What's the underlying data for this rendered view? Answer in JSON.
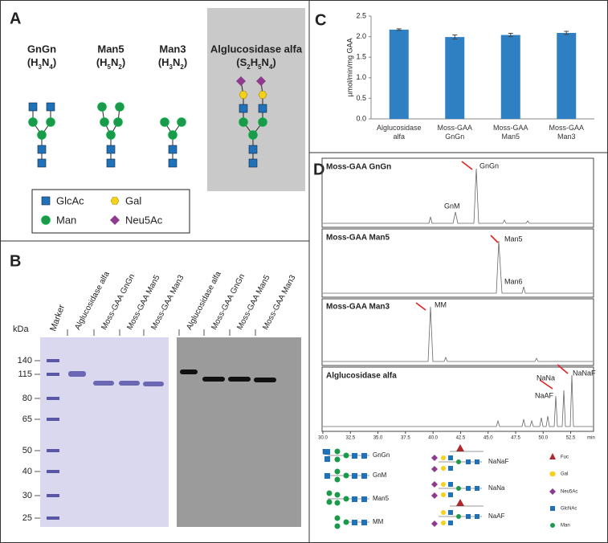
{
  "panel_a": {
    "letter": "A",
    "glycans": [
      {
        "name": "GnGn",
        "formula": [
          "(H",
          "3",
          "N",
          "4",
          ")"
        ]
      },
      {
        "name": "Man5",
        "formula": [
          "(H",
          "5",
          "N",
          "2",
          ")"
        ]
      },
      {
        "name": "Man3",
        "formula": [
          "(H",
          "3",
          "N",
          "2",
          ")"
        ]
      },
      {
        "name": "Alglucosidase alfa",
        "formula": [
          "(S",
          "2",
          "H",
          "5",
          "N",
          "4",
          ")"
        ]
      }
    ],
    "legend": [
      "GlcAc",
      "Gal",
      "Man",
      "Neu5Ac"
    ]
  },
  "panel_b": {
    "letter": "B",
    "unit": "kDa",
    "marker": "Marker",
    "lanes": [
      "Alglucosidase alfa",
      "Moss-GAA GnGn",
      "Moss-GAA Man5",
      "Moss-GAA Man3",
      "Alglucosidase alfa",
      "Moss-GAA GnGn",
      "Moss-GAA Man5",
      "Moss-GAA Man3"
    ],
    "mw": [
      140,
      115,
      80,
      65,
      50,
      40,
      30,
      25
    ]
  },
  "panel_c": {
    "letter": "C"
  },
  "chart_data": {
    "type": "bar",
    "ylabel": "µmol/min/mg GAA",
    "categories": [
      "Alglucosidase alfa",
      "Moss-GAA GnGn",
      "Moss-GAA Man5",
      "Moss-GAA Man3"
    ],
    "values": [
      2.17,
      1.99,
      2.04,
      2.09
    ],
    "errors": [
      0.02,
      0.05,
      0.04,
      0.04
    ],
    "color": "#2f80c3",
    "ylim": [
      0,
      2.5
    ],
    "yticks": [
      {
        "value": 0,
        "label": "0.0"
      },
      0.5,
      {
        "value": 1,
        "label": "1.0"
      },
      1.5,
      {
        "value": 2,
        "label": "2.0"
      },
      2.5
    ]
  },
  "panel_d": {
    "letter": "D",
    "traces": [
      {
        "title": "Moss-GAA GnGn",
        "peaks": [
          "GnGn",
          "GnM"
        ]
      },
      {
        "title": "Moss-GAA Man5",
        "peaks": [
          "Man5",
          "Man6"
        ]
      },
      {
        "title": "Moss-GAA Man3",
        "peaks": [
          "MM"
        ]
      },
      {
        "title": "Alglucosidase alfa",
        "peaks": [
          "NaNaF",
          "NaNa",
          "NaAF"
        ]
      }
    ],
    "xlim": [
      30,
      54.5
    ],
    "xticks": [
      {
        "value": 30,
        "label": "30.0"
      },
      32.5,
      {
        "value": 35,
        "label": "35.0"
      },
      37.5,
      {
        "value": 40,
        "label": "40.0"
      },
      42.5,
      {
        "value": 45,
        "label": "45.0"
      },
      47.5,
      {
        "value": 50,
        "label": "50.0"
      },
      52.5
    ],
    "xunit": "min",
    "structures": [
      "GnGn",
      "GnM",
      "Man5",
      "MM",
      "NaNaF",
      "NaNa",
      "NaAF"
    ],
    "key": [
      "Fuc",
      "Gal",
      "Neu5Ac",
      "GlcNAc",
      "Man"
    ]
  }
}
